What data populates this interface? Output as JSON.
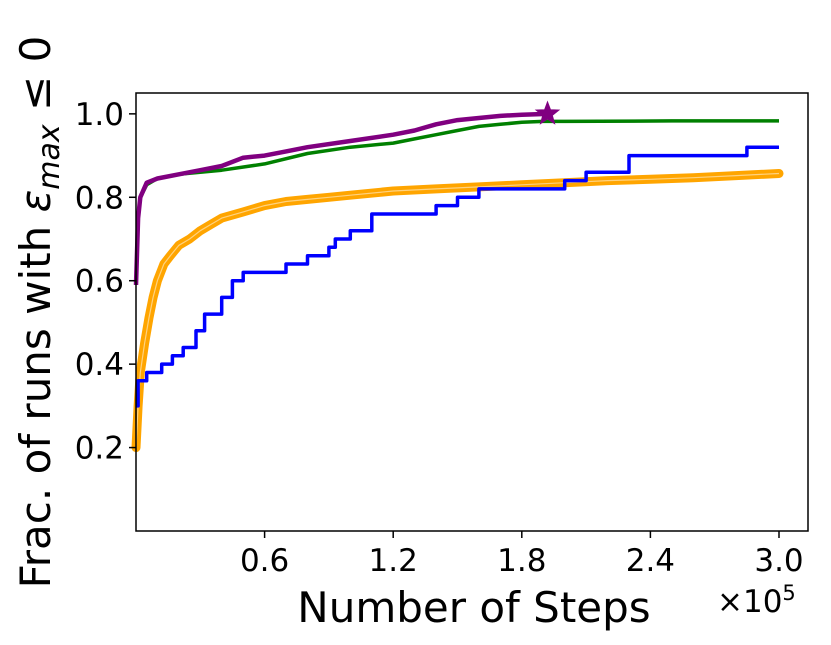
{
  "chart_data": {
    "type": "line",
    "xlabel": "Number of Steps",
    "ylabel_prefix": "Frac. of runs with ",
    "ylabel_symbol": "ε",
    "ylabel_subscript": "max",
    "ylabel_suffix": " ≤ 0",
    "x_offset_label": "×10",
    "x_offset_exponent": "5",
    "xlim": [
      0,
      3.0
    ],
    "ylim": [
      0.0,
      1.05
    ],
    "x_scale": 100000,
    "x_ticks": [
      0.6,
      1.2,
      1.8,
      2.4,
      3.0
    ],
    "x_tick_labels": [
      "0.6",
      "1.2",
      "1.8",
      "2.4",
      "3.0"
    ],
    "y_ticks": [
      0.2,
      0.4,
      0.6,
      0.8,
      1.0
    ],
    "y_tick_labels": [
      "0.2",
      "0.4",
      "0.6",
      "0.8",
      "1.0"
    ],
    "grid": false,
    "series": [
      {
        "color": "#008000",
        "style": "line",
        "x": [
          0.0,
          0.01,
          0.02,
          0.05,
          0.1,
          0.2,
          0.3,
          0.4,
          0.6,
          0.8,
          1.0,
          1.2,
          1.3,
          1.4,
          1.5,
          1.6,
          1.7,
          1.8,
          1.9,
          2.0,
          2.5,
          3.0
        ],
        "y": [
          0.59,
          0.75,
          0.8,
          0.83,
          0.845,
          0.855,
          0.86,
          0.865,
          0.88,
          0.905,
          0.92,
          0.93,
          0.94,
          0.95,
          0.96,
          0.97,
          0.975,
          0.98,
          0.982,
          0.982,
          0.983,
          0.983
        ]
      },
      {
        "color": "#800080",
        "style": "line",
        "x": [
          0.0,
          0.01,
          0.02,
          0.05,
          0.1,
          0.2,
          0.3,
          0.4,
          0.5,
          0.6,
          0.7,
          0.8,
          1.0,
          1.2,
          1.3,
          1.4,
          1.5,
          1.6,
          1.7,
          1.8,
          1.92
        ],
        "y": [
          0.59,
          0.75,
          0.8,
          0.835,
          0.845,
          0.855,
          0.865,
          0.875,
          0.895,
          0.9,
          0.91,
          0.92,
          0.935,
          0.95,
          0.96,
          0.975,
          0.985,
          0.99,
          0.995,
          0.998,
          1.0
        ]
      },
      {
        "color": "#0000ff",
        "style": "step",
        "x": [
          0.0,
          0.01,
          0.05,
          0.12,
          0.17,
          0.22,
          0.28,
          0.32,
          0.4,
          0.45,
          0.5,
          0.6,
          0.7,
          0.8,
          0.9,
          0.93,
          1.0,
          1.1,
          1.2,
          1.4,
          1.5,
          1.6,
          1.8,
          2.0,
          2.1,
          2.3,
          2.5,
          2.7,
          2.85,
          3.0
        ],
        "y": [
          0.3,
          0.36,
          0.38,
          0.4,
          0.42,
          0.44,
          0.48,
          0.52,
          0.56,
          0.6,
          0.62,
          0.62,
          0.64,
          0.66,
          0.68,
          0.7,
          0.72,
          0.76,
          0.76,
          0.78,
          0.8,
          0.82,
          0.82,
          0.84,
          0.86,
          0.9,
          0.9,
          0.9,
          0.92,
          0.92
        ]
      },
      {
        "color": "#FFA500",
        "style": "band",
        "x": [
          0.0,
          0.01,
          0.02,
          0.04,
          0.06,
          0.08,
          0.1,
          0.13,
          0.16,
          0.2,
          0.25,
          0.3,
          0.35,
          0.4,
          0.5,
          0.6,
          0.7,
          0.8,
          0.9,
          1.0,
          1.2,
          1.4,
          1.6,
          1.8,
          2.0,
          2.2,
          2.4,
          2.6,
          2.8,
          3.0
        ],
        "y": [
          0.2,
          0.3,
          0.38,
          0.45,
          0.51,
          0.56,
          0.6,
          0.64,
          0.66,
          0.685,
          0.7,
          0.72,
          0.735,
          0.75,
          0.765,
          0.78,
          0.79,
          0.795,
          0.8,
          0.805,
          0.815,
          0.82,
          0.825,
          0.83,
          0.835,
          0.84,
          0.843,
          0.847,
          0.852,
          0.857
        ]
      }
    ],
    "marker": {
      "x": 1.92,
      "y": 1.0,
      "color": "#800080",
      "shape": "star"
    }
  }
}
